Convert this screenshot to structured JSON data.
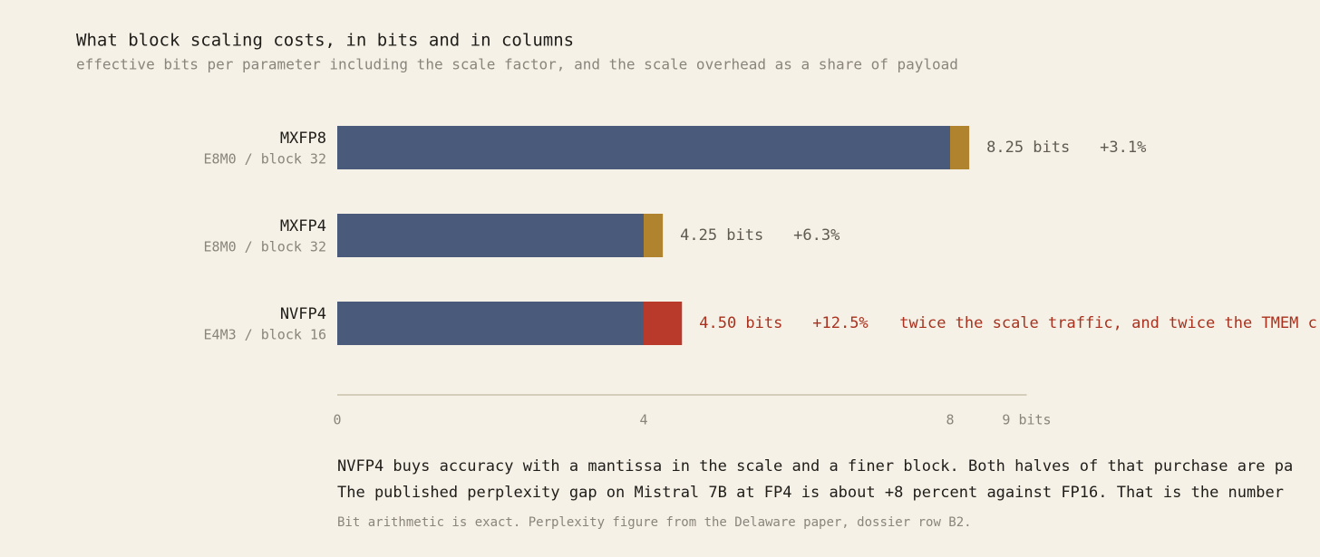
{
  "chart_data": {
    "type": "bar",
    "orientation": "horizontal",
    "stacked": true,
    "title": "What block scaling costs, in bits and in columns",
    "subtitle": "effective bits per parameter including the scale factor, and the scale overhead as a share of payload",
    "categories": [
      "MXFP8",
      "MXFP4",
      "NVFP4"
    ],
    "category_notes": [
      "E8M0 / block 32",
      "E8M0 / block 32",
      "E4M3 / block 16"
    ],
    "series": [
      {
        "color": "#4a5a7a",
        "values": [
          8,
          4,
          4
        ]
      },
      {
        "colors": [
          "#b0832e",
          "#b0832e",
          "#b93a2a"
        ],
        "values": [
          0.25,
          0.25,
          0.5
        ]
      }
    ],
    "total_labels": [
      "8.25 bits",
      "4.25 bits",
      "4.50 bits"
    ],
    "overhead_labels": [
      "+3.1%",
      "+6.3%",
      "+12.5%"
    ],
    "annotations": [
      null,
      null,
      "twice the scale traffic, and twice the TMEM c"
    ],
    "label_colors": [
      "#5f5a52",
      "#5f5a52",
      "#a8321f"
    ],
    "xlim": [
      0,
      9
    ],
    "xticks": [
      0,
      4,
      8,
      {
        "value": 9,
        "label": "9 bits"
      }
    ],
    "notes": [
      "NVFP4 buys accuracy with a mantissa in the scale and a finer block. Both halves of that purchase are pa",
      "The published perplexity gap on Mistral 7B at FP4 is about +8 percent against FP16. That is the number"
    ],
    "footnote": "Bit arithmetic is exact. Perplexity figure from the Delaware paper, dossier row B2."
  }
}
